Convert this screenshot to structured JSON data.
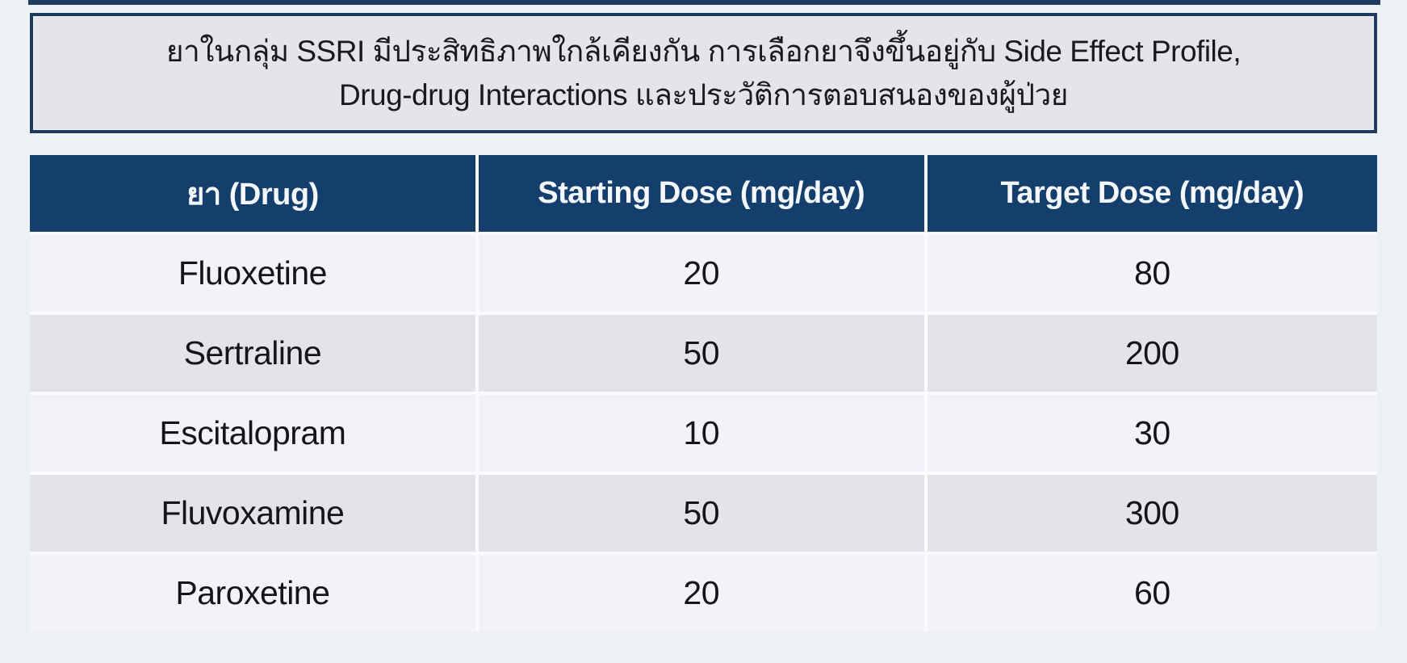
{
  "page": {
    "background_color": "#edf0f5",
    "accent_navy": "#143e6c",
    "border_navy": "#1d3b5e",
    "row_colors": [
      "#f1f3f7",
      "#e2e4e8"
    ]
  },
  "callout": {
    "line1": "ยาในกลุ่ม SSRI มีประสิทธิภาพใกล้เคียงกัน การเลือกยาจึงขึ้นอยู่กับ Side Effect Profile,",
    "line2": "Drug-drug Interactions และประวัติการตอบสนองของผู้ป่วย"
  },
  "table": {
    "columns": [
      "ยา (Drug)",
      "Starting Dose (mg/day)",
      "Target Dose (mg/day)"
    ],
    "rows": [
      {
        "drug": "Fluoxetine",
        "starting_dose": "20",
        "target_dose": "80"
      },
      {
        "drug": "Sertraline",
        "starting_dose": "50",
        "target_dose": "200"
      },
      {
        "drug": "Escitalopram",
        "starting_dose": "10",
        "target_dose": "30"
      },
      {
        "drug": "Fluvoxamine",
        "starting_dose": "50",
        "target_dose": "300"
      },
      {
        "drug": "Paroxetine",
        "starting_dose": "20",
        "target_dose": "60"
      }
    ]
  }
}
